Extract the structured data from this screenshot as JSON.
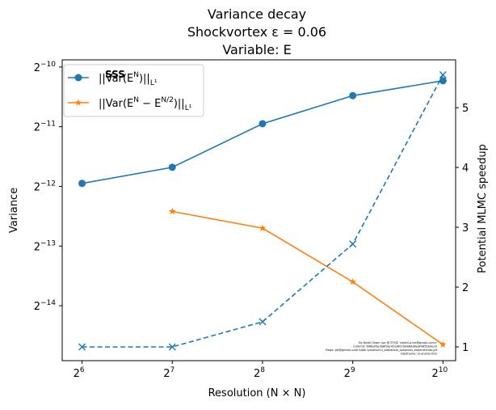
{
  "chart_data": {
    "type": "line",
    "title_lines": [
      "Variance decay",
      "Shockvortex ε = 0.06",
      "Variable: E"
    ],
    "xlabel": "Resolution (N × N)",
    "ylabel_left": "Variance",
    "ylabel_right": "Potential MLMC speedup",
    "x_scale": "log2",
    "x": [
      64,
      128,
      256,
      512,
      1024
    ],
    "x_ticks": [
      {
        "base": "2",
        "exp": "6"
      },
      {
        "base": "2",
        "exp": "7"
      },
      {
        "base": "2",
        "exp": "8"
      },
      {
        "base": "2",
        "exp": "9"
      },
      {
        "base": "2",
        "exp": "10"
      }
    ],
    "y_left_scale": "log2",
    "y_left_ticks": [
      {
        "base": "2",
        "exp": "−10"
      },
      {
        "base": "2",
        "exp": "−11"
      },
      {
        "base": "2",
        "exp": "−12"
      },
      {
        "base": "2",
        "exp": "−13"
      },
      {
        "base": "2",
        "exp": "−14"
      }
    ],
    "y_right_ticks": [
      "1",
      "2",
      "3",
      "4",
      "5"
    ],
    "series": [
      {
        "name": "||Var(E^N)||_{L^1}",
        "legend_main": "||Var(E",
        "legend_sup": "N",
        "legend_tail": ")||",
        "legend_sub": "L¹",
        "axis": "left",
        "color": "#1f77b4",
        "marker": "circle",
        "style": "solid",
        "x": [
          64,
          128,
          256,
          512,
          1024
        ],
        "log2_values": [
          -11.95,
          -11.68,
          -10.95,
          -10.48,
          -10.23
        ]
      },
      {
        "name": "||Var(E^N − E^{N/2})||_{L^1}",
        "legend_main": "||Var(E",
        "legend_sup": "N",
        "legend_mid": " − E",
        "legend_sup2": "N/2",
        "legend_tail": ")||",
        "legend_sub": "L¹",
        "axis": "left",
        "color": "#ff7f0e",
        "marker": "star",
        "style": "solid",
        "x": [
          128,
          256,
          512,
          1024
        ],
        "log2_values": [
          -12.42,
          -12.7,
          -13.6,
          -14.65
        ]
      },
      {
        "name": "Potential MLMC speedup",
        "axis": "right",
        "color": "#1f77b4",
        "marker": "x",
        "style": "dashed",
        "x": [
          64,
          128,
          256,
          512,
          1024
        ],
        "values": [
          1.0,
          1.0,
          1.42,
          2.72,
          5.55
        ]
      }
    ],
    "xlim_log2": [
      5.78,
      10.14
    ],
    "ylim_left_log2": [
      -14.92,
      -9.88
    ],
    "ylim_right": [
      0.77,
      5.8
    ],
    "grid": false,
    "legend_location": "upper-left",
    "watermark_logo_text": "SSS",
    "footer_note": [
      "By Kjetil Olsen Lye @ ETHZ <kjetil.o.lye@gmail.com>",
      "Commit: 696a05a3b8f9ac41a9fd7a088dd8a3f485bb9e1b",
      "Repo: git@github.com:kjetil-lye/alsvinn_statistical_solutions_experiments.git",
      "Hostname: lx-and-fp-002"
    ]
  }
}
